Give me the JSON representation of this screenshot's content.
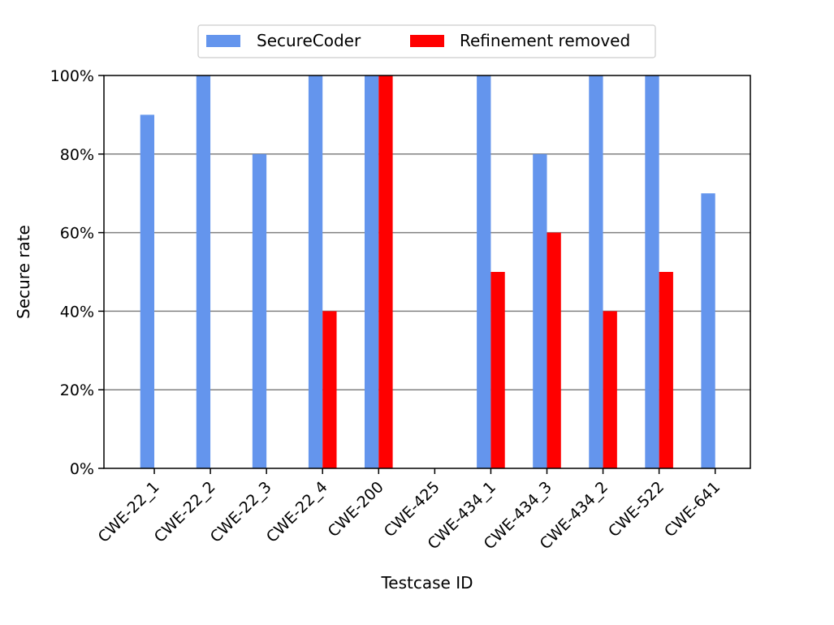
{
  "chart_data": {
    "type": "bar",
    "title": "",
    "xlabel": "Testcase ID",
    "ylabel": "Secure rate",
    "ylim": [
      0,
      100
    ],
    "yticks": [
      0,
      20,
      40,
      60,
      80,
      100
    ],
    "ytick_suffix": "%",
    "grid": "y",
    "legend": "top-center",
    "categories": [
      "CWE-22_1",
      "CWE-22_2",
      "CWE-22_3",
      "CWE-22_4",
      "CWE-200",
      "CWE-425",
      "CWE-434_1",
      "CWE-434_3",
      "CWE-434_2",
      "CWE-522",
      "CWE-641"
    ],
    "series": [
      {
        "name": "SecureCoder",
        "color": "#6495ED",
        "values": [
          90,
          100,
          80,
          100,
          100,
          0,
          100,
          80,
          100,
          100,
          70
        ]
      },
      {
        "name": "Refinement removed",
        "color": "#FF0000",
        "values": [
          0,
          0,
          0,
          40,
          100,
          0,
          50,
          60,
          40,
          50,
          0
        ]
      }
    ]
  }
}
